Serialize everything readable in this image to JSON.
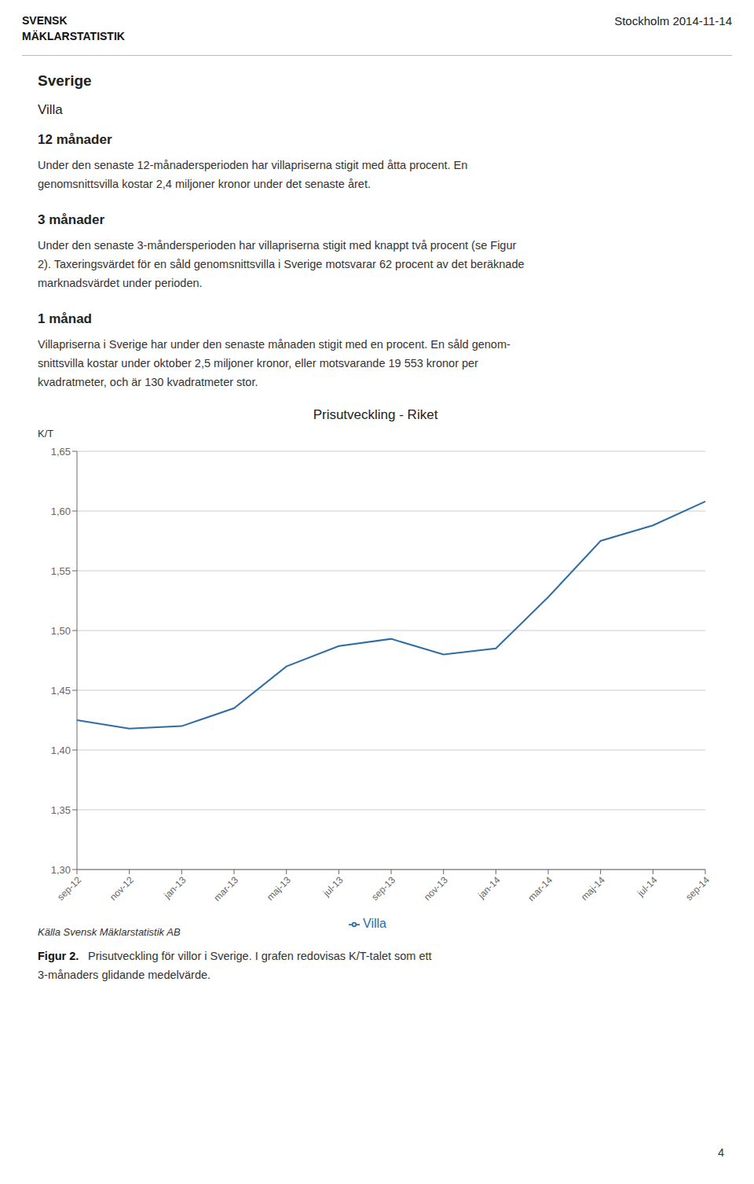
{
  "chart_data": {
    "type": "line",
    "title": "Prisutveckling - Riket",
    "y_label": "K/T",
    "categories": [
      "sep-12",
      "nov-12",
      "jan-13",
      "mar-13",
      "maj-13",
      "jul-13",
      "sep-13",
      "nov-13",
      "jan-14",
      "mar-14",
      "maj-14",
      "jul-14",
      "sep-14"
    ],
    "series": [
      {
        "name": "Villa",
        "color": "#2E6DA4",
        "values": [
          1.425,
          1.418,
          1.42,
          1.435,
          1.47,
          1.487,
          1.493,
          1.48,
          1.485,
          1.528,
          1.575,
          1.588,
          1.608
        ]
      }
    ],
    "ylim": [
      1.3,
      1.65
    ],
    "yticks": [
      {
        "value": 1.3,
        "label": "1,30"
      },
      {
        "value": 1.35,
        "label": "1,35"
      },
      {
        "value": 1.4,
        "label": "1,40"
      },
      {
        "value": 1.45,
        "label": "1,45"
      },
      {
        "value": 1.5,
        "label": "1,50"
      },
      {
        "value": 1.55,
        "label": "1,55"
      },
      {
        "value": 1.6,
        "label": "1,60"
      },
      {
        "value": 1.65,
        "label": "1,65"
      }
    ],
    "grid": true,
    "annotations": [
      "SVENSK",
      "MÄKLARSTATISTIK",
      "Stockholm 2014-11-14",
      "Sverige",
      "Villa",
      "12 månader",
      "Under den senaste 12-månadersperioden har villapriserna stigit med åtta procent. En",
      "genomsnittsvilla kostar 2,4 miljoner kronor under det senaste året.",
      "3 månader",
      "Under den senaste 3-måndersperioden har villapriserna stigit med knappt två procent (se Figur",
      "2). Taxeringsvärdet för en såld genomsnittsvilla i Sverige motsvarar 62 procent av det beräknade",
      "marknadsvärdet under perioden.",
      "1 månad",
      "Villapriserna i Sverige har under den senaste månaden stigit med en procent. En såld genom-",
      "snittsvilla kostar under oktober 2,5 miljoner kronor, eller motsvarande 19 553 kronor per",
      "kvadratmeter, och är 130 kvadratmeter stor.",
      "Källa Svensk Mäklarstatistik AB",
      "Figur 2.",
      "Prisutveckling för villor i Sverige. I grafen redovisas K/T-talet som ett",
      "3-månaders glidande medelvärde.",
      "4"
    ]
  }
}
